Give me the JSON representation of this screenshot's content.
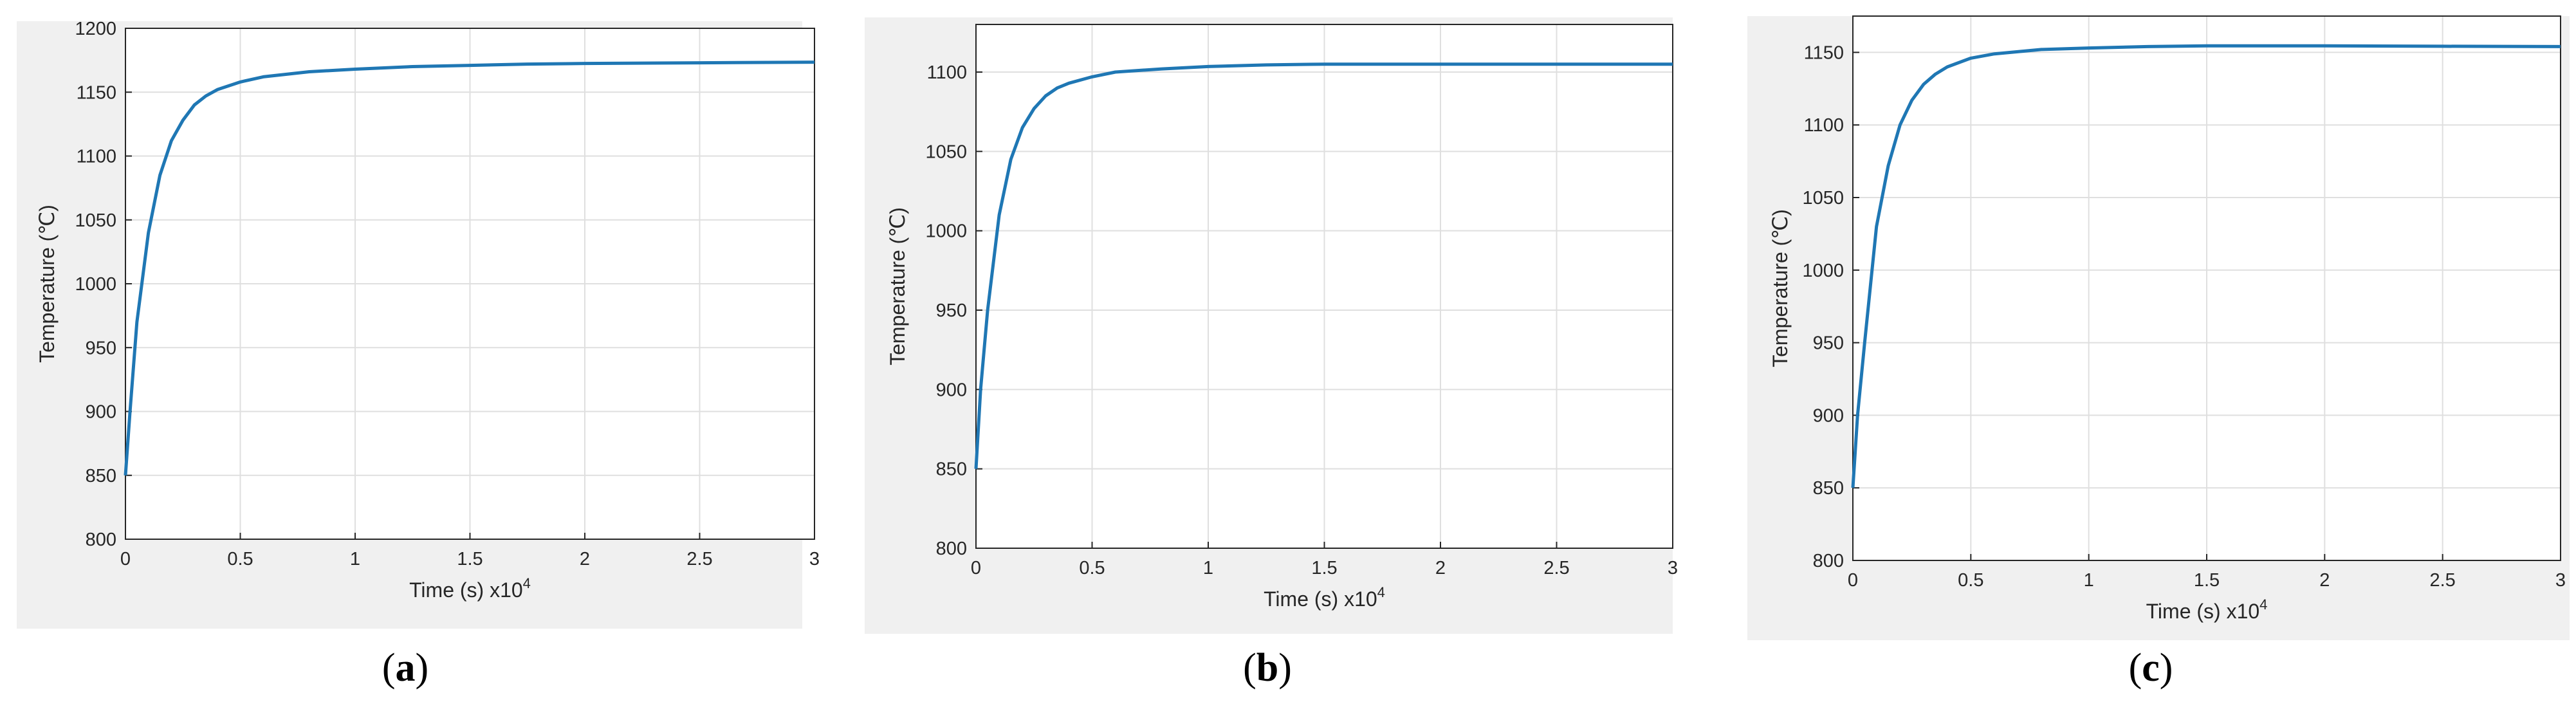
{
  "chart_data": [
    {
      "type": "line",
      "panel_label": "a",
      "xlabel": "Time (s) x10",
      "xlabel_exponent": "4",
      "ylabel": "Temperature (℃)",
      "xlim": [
        0,
        3
      ],
      "ylim": [
        800,
        1200
      ],
      "xticks": [
        "0",
        "0.5",
        "1",
        "1.5",
        "2",
        "2.5",
        "3"
      ],
      "yticks": [
        "800",
        "850",
        "900",
        "950",
        "1000",
        "1050",
        "1100",
        "1150",
        "1200"
      ],
      "grid": true,
      "color": "#1f77b4",
      "series": [
        {
          "x": [
            0,
            0.02,
            0.05,
            0.1,
            0.15,
            0.2,
            0.25,
            0.3,
            0.35,
            0.4,
            0.5,
            0.6,
            0.8,
            1.0,
            1.25,
            1.5,
            1.75,
            2.0,
            2.5,
            3.0
          ],
          "y": [
            850,
            900,
            970,
            1040,
            1085,
            1112,
            1128,
            1140,
            1147,
            1152,
            1158,
            1162,
            1166,
            1168,
            1170,
            1171,
            1172,
            1172.5,
            1173,
            1173.5
          ]
        }
      ]
    },
    {
      "type": "line",
      "panel_label": "b",
      "xlabel": "Time (s) x10",
      "xlabel_exponent": "4",
      "ylabel": "Temperature (℃)",
      "xlim": [
        0,
        3
      ],
      "ylim": [
        800,
        1130
      ],
      "xticks": [
        "0",
        "0.5",
        "1",
        "1.5",
        "2",
        "2.5",
        "3"
      ],
      "yticks": [
        "800",
        "850",
        "900",
        "950",
        "1000",
        "1050",
        "1100"
      ],
      "grid": true,
      "color": "#1f77b4",
      "series": [
        {
          "x": [
            0,
            0.02,
            0.05,
            0.1,
            0.15,
            0.2,
            0.25,
            0.3,
            0.35,
            0.4,
            0.5,
            0.6,
            0.8,
            1.0,
            1.25,
            1.5,
            1.75,
            2.0,
            2.5,
            3.0
          ],
          "y": [
            850,
            900,
            950,
            1010,
            1045,
            1065,
            1077,
            1085,
            1090,
            1093,
            1097,
            1100,
            1102,
            1103.5,
            1104.5,
            1105,
            1105,
            1105,
            1105,
            1105
          ]
        }
      ]
    },
    {
      "type": "line",
      "panel_label": "c",
      "xlabel": "Time (s) x10",
      "xlabel_exponent": "4",
      "ylabel": "Temperature (℃)",
      "xlim": [
        0,
        3
      ],
      "ylim": [
        800,
        1175
      ],
      "xticks": [
        "0",
        "0.5",
        "1",
        "1.5",
        "2",
        "2.5",
        "3"
      ],
      "yticks": [
        "800",
        "850",
        "900",
        "950",
        "1000",
        "1050",
        "1100",
        "1150"
      ],
      "grid": true,
      "color": "#1f77b4",
      "series": [
        {
          "x": [
            0,
            0.02,
            0.05,
            0.1,
            0.15,
            0.2,
            0.25,
            0.3,
            0.35,
            0.4,
            0.5,
            0.6,
            0.8,
            1.0,
            1.25,
            1.5,
            1.75,
            2.0,
            2.5,
            3.0
          ],
          "y": [
            850,
            900,
            950,
            1030,
            1072,
            1100,
            1117,
            1128,
            1135,
            1140,
            1146,
            1149,
            1152,
            1153,
            1154,
            1154.5,
            1154.5,
            1154.5,
            1154.2,
            1154
          ]
        }
      ]
    }
  ]
}
